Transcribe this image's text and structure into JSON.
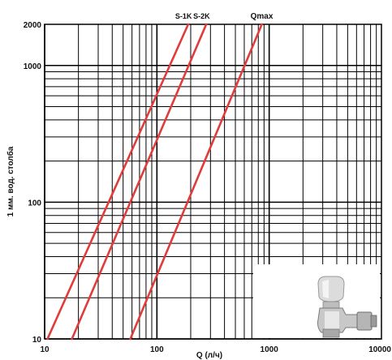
{
  "chart_data": {
    "type": "line",
    "x_scale": "log",
    "y_scale": "log",
    "xlim": [
      10,
      10000
    ],
    "ylim": [
      10,
      2000
    ],
    "xlabel": "Q (л/ч)",
    "ylabel": "1 мм. вод. столба",
    "x_ticks": [
      {
        "value": 10,
        "label": "10"
      },
      {
        "value": 100,
        "label": "100"
      },
      {
        "value": 1000,
        "label": "1000"
      },
      {
        "value": 10000,
        "label": "10000"
      }
    ],
    "y_ticks": [
      {
        "value": 10,
        "label": "10"
      },
      {
        "value": 100,
        "label": "100"
      },
      {
        "value": 1000,
        "label": "1000"
      },
      {
        "value": 2000,
        "label": "2000"
      }
    ],
    "grid": true,
    "line_color": "#e03c3c",
    "series": [
      {
        "name": "S-1K",
        "x": [
          10.6,
          190
        ],
        "y": [
          10,
          2000
        ]
      },
      {
        "name": "S-2K",
        "x": [
          17.5,
          275
        ],
        "y": [
          10,
          2000
        ]
      },
      {
        "name": "Qmax",
        "x": [
          58,
          860
        ],
        "y": [
          10,
          2000
        ]
      }
    ]
  }
}
